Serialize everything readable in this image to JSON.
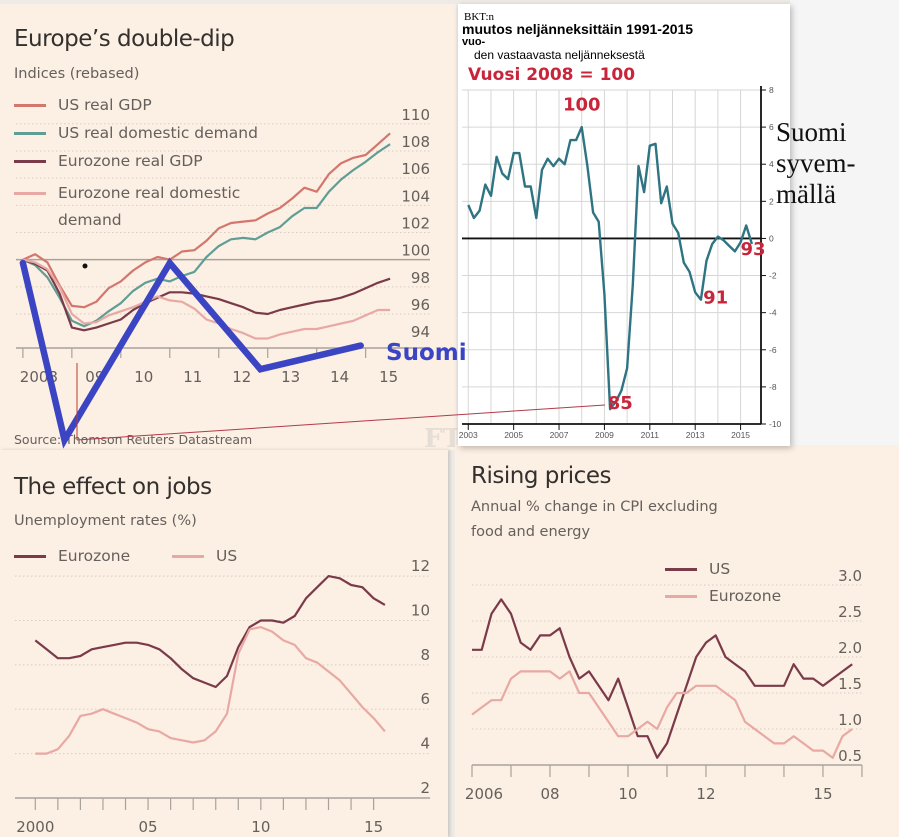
{
  "colors": {
    "us_gdp": "#d3766e",
    "us_domestic": "#5f9e96",
    "ez_gdp": "#7a3a4a",
    "ez_domestic": "#e8a9a4",
    "suomi_overlay": "#3b45c4",
    "fin_line": "#2e7482",
    "red_annotation": "#c8253a",
    "panel_bg": "#fcefe3"
  },
  "chart_data": [
    {
      "id": "europe-double-dip",
      "type": "line",
      "title": "Europe’s double-dip",
      "subtitle": "Indices (rebased)",
      "source": "Source: Thomson Reuters Datastream",
      "xlabel": "",
      "ylabel": "",
      "x_tick_labels": [
        "2008",
        "09",
        "10",
        "11",
        "12",
        "13",
        "14",
        "15"
      ],
      "x_tick_values": [
        2008,
        2009,
        2010,
        2011,
        2012,
        2013,
        2014,
        2015
      ],
      "y_tick_labels": [
        "110",
        "108",
        "106",
        "104",
        "102",
        "100",
        "98",
        "96",
        "94"
      ],
      "ylim": [
        93.5,
        110.5
      ],
      "xlim": [
        2007.9,
        2015.6
      ],
      "grid": true,
      "legend_position": "top-left",
      "series": [
        {
          "name": "US real GDP",
          "color_key": "us_gdp",
          "x": [
            2008.0,
            2008.25,
            2008.5,
            2008.75,
            2009.0,
            2009.25,
            2009.5,
            2009.75,
            2010.0,
            2010.25,
            2010.5,
            2010.75,
            2011.0,
            2011.25,
            2011.5,
            2011.75,
            2012.0,
            2012.25,
            2012.5,
            2012.75,
            2013.0,
            2013.25,
            2013.5,
            2013.75,
            2014.0,
            2014.25,
            2014.5,
            2014.75,
            2015.0,
            2015.25,
            2015.5
          ],
          "y": [
            100.0,
            100.4,
            99.8,
            98.1,
            96.6,
            96.5,
            96.9,
            97.9,
            98.4,
            99.2,
            99.8,
            100.2,
            100.0,
            100.6,
            100.7,
            101.4,
            102.3,
            102.7,
            102.8,
            102.9,
            103.4,
            103.8,
            104.5,
            105.3,
            105.0,
            106.3,
            107.1,
            107.5,
            107.7,
            108.5,
            109.3
          ]
        },
        {
          "name": "US real domestic demand",
          "color_key": "us_domestic",
          "x": [
            2008.0,
            2008.25,
            2008.5,
            2008.75,
            2009.0,
            2009.25,
            2009.5,
            2009.75,
            2010.0,
            2010.25,
            2010.5,
            2010.75,
            2011.0,
            2011.25,
            2011.5,
            2011.75,
            2012.0,
            2012.25,
            2012.5,
            2012.75,
            2013.0,
            2013.25,
            2013.5,
            2013.75,
            2014.0,
            2014.25,
            2014.5,
            2014.75,
            2015.0,
            2015.25,
            2015.5
          ],
          "y": [
            100.0,
            99.6,
            98.7,
            97.2,
            95.5,
            95.1,
            95.5,
            96.2,
            96.8,
            97.7,
            98.3,
            98.6,
            98.4,
            98.8,
            99.1,
            100.2,
            101.0,
            101.5,
            101.6,
            101.5,
            102.0,
            102.4,
            103.2,
            103.8,
            103.8,
            105.0,
            105.9,
            106.6,
            107.2,
            107.9,
            108.5
          ]
        },
        {
          "name": "Eurozone real GDP",
          "color_key": "ez_gdp",
          "x": [
            2008.0,
            2008.25,
            2008.5,
            2008.75,
            2009.0,
            2009.25,
            2009.5,
            2009.75,
            2010.0,
            2010.25,
            2010.5,
            2010.75,
            2011.0,
            2011.25,
            2011.5,
            2011.75,
            2012.0,
            2012.25,
            2012.5,
            2012.75,
            2013.0,
            2013.25,
            2013.5,
            2013.75,
            2014.0,
            2014.25,
            2014.5,
            2014.75,
            2015.0,
            2015.25,
            2015.5
          ],
          "y": [
            100.0,
            99.7,
            99.2,
            97.5,
            95.0,
            94.8,
            95.0,
            95.3,
            95.6,
            96.3,
            96.8,
            97.2,
            97.6,
            97.6,
            97.5,
            97.3,
            97.1,
            96.8,
            96.5,
            96.1,
            96.0,
            96.3,
            96.5,
            96.7,
            96.9,
            97.0,
            97.2,
            97.5,
            97.9,
            98.3,
            98.6
          ]
        },
        {
          "name": "Eurozone real domestic demand",
          "color_key": "ez_domestic",
          "x": [
            2008.0,
            2008.25,
            2008.5,
            2008.75,
            2009.0,
            2009.25,
            2009.5,
            2009.75,
            2010.0,
            2010.25,
            2010.5,
            2010.75,
            2011.0,
            2011.25,
            2011.5,
            2011.75,
            2012.0,
            2012.25,
            2012.5,
            2012.75,
            2013.0,
            2013.25,
            2013.5,
            2013.75,
            2014.0,
            2014.25,
            2014.5,
            2014.75,
            2015.0,
            2015.25,
            2015.5
          ],
          "y": [
            100.0,
            99.8,
            99.3,
            98.0,
            96.0,
            95.3,
            95.4,
            95.9,
            96.2,
            96.5,
            96.9,
            97.3,
            97.0,
            96.9,
            96.4,
            95.6,
            95.3,
            94.9,
            94.6,
            94.2,
            94.2,
            94.5,
            94.7,
            94.9,
            94.9,
            95.1,
            95.3,
            95.5,
            95.9,
            96.3,
            96.3
          ]
        }
      ]
    },
    {
      "id": "finland-gdp",
      "type": "line",
      "title_small": "BKT:n",
      "title": "muutos neljänneksittäin 1991-2015",
      "title_small2": "vuo-",
      "subtitle": "den vastaavasta neljänneksestä",
      "note": "Vuosi 2008 = 100",
      "x_tick_labels": [
        "2003",
        "2005",
        "2007",
        "2009",
        "2011",
        "2013",
        "2015"
      ],
      "x_tick_values": [
        2003,
        2005,
        2007,
        2009,
        2011,
        2013,
        2015
      ],
      "y_tick_labels": [
        "8",
        "6",
        "4",
        "2",
        "0",
        "-2",
        "-4",
        "-6",
        "-8",
        "-10"
      ],
      "y_tick_values": [
        8,
        6,
        4,
        2,
        0,
        -2,
        -4,
        -6,
        -8,
        -10
      ],
      "ylim": [
        -10,
        8
      ],
      "xlim": [
        2002.9,
        2015.9
      ],
      "grid": true,
      "annotations": [
        {
          "text": "100",
          "x": 2008.0,
          "y": 6.9
        },
        {
          "text": "85",
          "x": 2009.7,
          "y": -9.2
        },
        {
          "text": "91",
          "x": 2013.9,
          "y": -3.5
        },
        {
          "text": "93",
          "x": 2015.55,
          "y": -0.9
        }
      ],
      "side_note": [
        "Suomi",
        "syvem-",
        "mällä"
      ],
      "series": [
        {
          "name": "BKT muutos %",
          "color_key": "fin_line",
          "x": [
            2003.0,
            2003.25,
            2003.5,
            2003.75,
            2004.0,
            2004.25,
            2004.5,
            2004.75,
            2005.0,
            2005.25,
            2005.5,
            2005.75,
            2006.0,
            2006.25,
            2006.5,
            2006.75,
            2007.0,
            2007.25,
            2007.5,
            2007.75,
            2008.0,
            2008.25,
            2008.5,
            2008.75,
            2009.0,
            2009.25,
            2009.5,
            2009.75,
            2010.0,
            2010.25,
            2010.5,
            2010.75,
            2011.0,
            2011.25,
            2011.5,
            2011.75,
            2012.0,
            2012.25,
            2012.5,
            2012.75,
            2013.0,
            2013.25,
            2013.5,
            2013.75,
            2014.0,
            2014.25,
            2014.5,
            2014.75,
            2015.0,
            2015.25,
            2015.5
          ],
          "y": [
            1.8,
            1.1,
            1.5,
            2.9,
            2.3,
            4.4,
            3.5,
            3.2,
            4.6,
            4.6,
            2.8,
            2.8,
            1.1,
            3.7,
            4.3,
            3.9,
            4.3,
            4.0,
            5.3,
            5.3,
            6.0,
            3.9,
            1.4,
            0.9,
            -3.0,
            -9.2,
            -8.8,
            -8.2,
            -7.0,
            -2.5,
            3.9,
            2.5,
            5.0,
            5.1,
            1.9,
            2.8,
            0.8,
            0.3,
            -1.3,
            -1.8,
            -2.9,
            -3.3,
            -1.2,
            -0.3,
            0.1,
            -0.1,
            -0.4,
            -0.7,
            -0.2,
            0.7,
            -0.3
          ]
        }
      ]
    },
    {
      "id": "effect-on-jobs",
      "type": "line",
      "title": "The effect on jobs",
      "subtitle": "Unemployment rates (%)",
      "x_tick_labels": [
        "2000",
        "05",
        "10",
        "15"
      ],
      "x_tick_values": [
        2000,
        2005,
        2010,
        2015
      ],
      "y_tick_labels": [
        "12",
        "10",
        "8",
        "6",
        "4",
        "2"
      ],
      "y_tick_values": [
        12,
        10,
        8,
        6,
        4,
        2
      ],
      "ylim": [
        2,
        12.5
      ],
      "xlim": [
        1999.1,
        2017.5
      ],
      "grid": true,
      "legend_position": "top-left",
      "series": [
        {
          "name": "Eurozone",
          "color_key": "ez_gdp",
          "x": [
            2000.0,
            2000.5,
            2001.0,
            2001.5,
            2002.0,
            2002.5,
            2003.0,
            2003.5,
            2004.0,
            2004.5,
            2005.0,
            2005.5,
            2006.0,
            2006.5,
            2007.0,
            2007.5,
            2008.0,
            2008.5,
            2009.0,
            2009.5,
            2010.0,
            2010.5,
            2011.0,
            2011.5,
            2012.0,
            2012.5,
            2013.0,
            2013.5,
            2014.0,
            2014.5,
            2015.0,
            2015.5
          ],
          "y": [
            9.1,
            8.7,
            8.3,
            8.3,
            8.4,
            8.7,
            8.8,
            8.9,
            9.0,
            9.0,
            8.9,
            8.7,
            8.3,
            7.8,
            7.4,
            7.2,
            7.0,
            7.5,
            8.8,
            9.7,
            10.0,
            10.0,
            9.9,
            10.2,
            11.0,
            11.5,
            12.0,
            11.9,
            11.6,
            11.5,
            11.0,
            10.7
          ]
        },
        {
          "name": "US",
          "color_key": "ez_domestic",
          "x": [
            2000.0,
            2000.5,
            2001.0,
            2001.5,
            2002.0,
            2002.5,
            2003.0,
            2003.5,
            2004.0,
            2004.5,
            2005.0,
            2005.5,
            2006.0,
            2006.5,
            2007.0,
            2007.5,
            2008.0,
            2008.5,
            2009.0,
            2009.5,
            2010.0,
            2010.5,
            2011.0,
            2011.5,
            2012.0,
            2012.5,
            2013.0,
            2013.5,
            2014.0,
            2014.5,
            2015.0,
            2015.5
          ],
          "y": [
            4.0,
            4.0,
            4.2,
            4.8,
            5.7,
            5.8,
            6.0,
            5.8,
            5.6,
            5.4,
            5.1,
            5.0,
            4.7,
            4.6,
            4.5,
            4.6,
            5.0,
            5.8,
            8.5,
            9.6,
            9.7,
            9.5,
            9.1,
            8.9,
            8.3,
            8.1,
            7.7,
            7.3,
            6.7,
            6.1,
            5.6,
            5.0
          ]
        }
      ]
    },
    {
      "id": "rising-prices",
      "type": "line",
      "title": "Rising prices",
      "subtitle": "Annual % change in CPI excluding food and energy",
      "subtitle_lines": [
        "Annual % change in CPI excluding",
        "food and energy"
      ],
      "x_tick_labels": [
        "2006",
        "08",
        "10",
        "12",
        "15"
      ],
      "x_tick_values": [
        2006,
        2008,
        2010,
        2012,
        2015
      ],
      "y_tick_labels": [
        "3.0",
        "2.5",
        "2.0",
        "1.5",
        "1.0",
        "0.5"
      ],
      "y_tick_values": [
        3.0,
        2.5,
        2.0,
        1.5,
        1.0,
        0.5
      ],
      "ylim": [
        0.5,
        3.0
      ],
      "xlim": [
        2006.0,
        2015.95
      ],
      "grid": true,
      "legend_position": "top-right",
      "series": [
        {
          "name": "US",
          "color_key": "ez_gdp",
          "x": [
            2006.0,
            2006.25,
            2006.5,
            2006.75,
            2007.0,
            2007.25,
            2007.5,
            2007.75,
            2008.0,
            2008.25,
            2008.5,
            2008.75,
            2009.0,
            2009.25,
            2009.5,
            2009.75,
            2010.0,
            2010.25,
            2010.5,
            2010.75,
            2011.0,
            2011.25,
            2011.5,
            2011.75,
            2012.0,
            2012.25,
            2012.5,
            2012.75,
            2013.0,
            2013.25,
            2013.5,
            2013.75,
            2014.0,
            2014.25,
            2014.5,
            2014.75,
            2015.0,
            2015.25,
            2015.5,
            2015.75
          ],
          "y": [
            2.1,
            2.1,
            2.6,
            2.8,
            2.6,
            2.2,
            2.1,
            2.3,
            2.3,
            2.4,
            2.0,
            1.7,
            1.8,
            1.6,
            1.4,
            1.7,
            1.3,
            0.9,
            0.9,
            0.6,
            0.8,
            1.2,
            1.6,
            2.0,
            2.2,
            2.3,
            2.0,
            1.9,
            1.8,
            1.6,
            1.6,
            1.6,
            1.6,
            1.9,
            1.7,
            1.7,
            1.6,
            1.7,
            1.8,
            1.9
          ]
        },
        {
          "name": "Eurozone",
          "color_key": "ez_domestic",
          "x": [
            2006.0,
            2006.25,
            2006.5,
            2006.75,
            2007.0,
            2007.25,
            2007.5,
            2007.75,
            2008.0,
            2008.25,
            2008.5,
            2008.75,
            2009.0,
            2009.25,
            2009.5,
            2009.75,
            2010.0,
            2010.25,
            2010.5,
            2010.75,
            2011.0,
            2011.25,
            2011.5,
            2011.75,
            2012.0,
            2012.25,
            2012.5,
            2012.75,
            2013.0,
            2013.25,
            2013.5,
            2013.75,
            2014.0,
            2014.25,
            2014.5,
            2014.75,
            2015.0,
            2015.25,
            2015.5,
            2015.75
          ],
          "y": [
            1.2,
            1.3,
            1.4,
            1.4,
            1.7,
            1.8,
            1.8,
            1.8,
            1.8,
            1.7,
            1.8,
            1.5,
            1.5,
            1.3,
            1.1,
            0.9,
            0.9,
            1.0,
            1.1,
            1.0,
            1.3,
            1.5,
            1.5,
            1.6,
            1.6,
            1.6,
            1.5,
            1.4,
            1.1,
            1.0,
            0.9,
            0.8,
            0.8,
            0.9,
            0.8,
            0.7,
            0.7,
            0.6,
            0.9,
            1.0
          ]
        }
      ]
    }
  ],
  "overlay": {
    "suomi_label": "Suomi",
    "suomi_zigzag_index": {
      "x": [
        2008.0,
        2008.85,
        2011.0,
        2012.85,
        2014.9
      ],
      "y": [
        100,
        85,
        100,
        91,
        93
      ]
    },
    "watermark": "FT"
  }
}
